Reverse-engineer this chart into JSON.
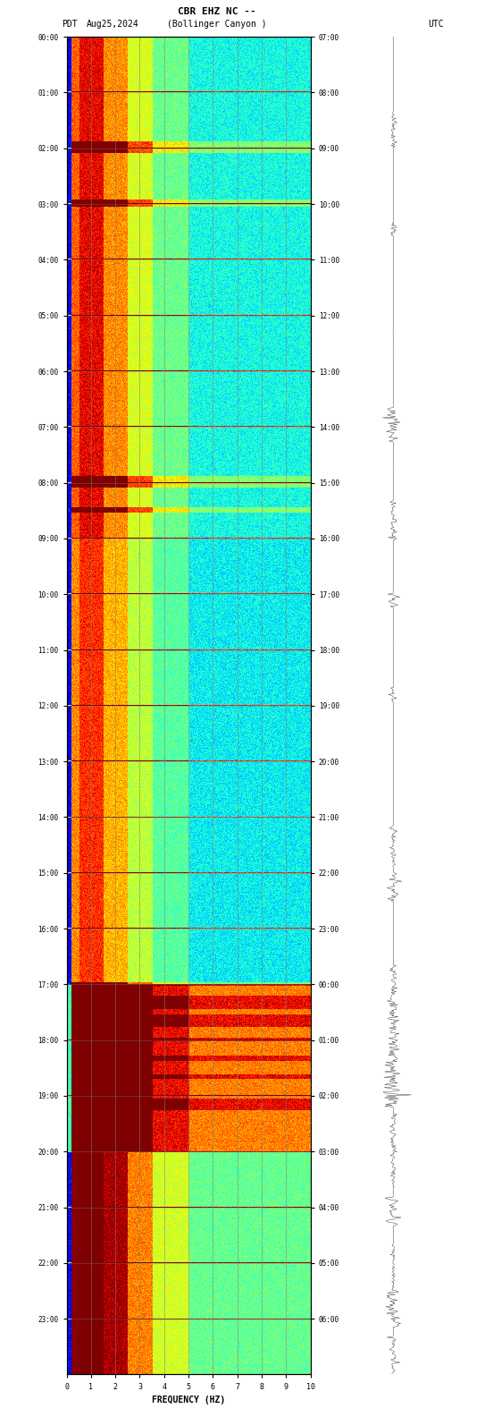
{
  "title_line1": "CBR EHZ NC --",
  "title_line2": "(Bollinger Canyon )",
  "label_left": "PDT",
  "label_date": "Aug25,2024",
  "label_right": "UTC",
  "left_yticks": [
    "00:00",
    "01:00",
    "02:00",
    "03:00",
    "04:00",
    "05:00",
    "06:00",
    "07:00",
    "08:00",
    "09:00",
    "10:00",
    "11:00",
    "12:00",
    "13:00",
    "14:00",
    "15:00",
    "16:00",
    "17:00",
    "18:00",
    "19:00",
    "20:00",
    "21:00",
    "22:00",
    "23:00"
  ],
  "right_yticks": [
    "07:00",
    "08:00",
    "09:00",
    "10:00",
    "11:00",
    "12:00",
    "13:00",
    "14:00",
    "15:00",
    "16:00",
    "17:00",
    "18:00",
    "19:00",
    "20:00",
    "21:00",
    "22:00",
    "23:00",
    "00:00",
    "01:00",
    "02:00",
    "03:00",
    "04:00",
    "05:00",
    "06:00"
  ],
  "xlabel": "FREQUENCY (HZ)",
  "xticks": [
    0,
    1,
    2,
    3,
    4,
    5,
    6,
    7,
    8,
    9,
    10
  ],
  "xmin": 0,
  "xmax": 10,
  "spectrogram_colormap": "jet",
  "background_color": "#ffffff",
  "n_time_bins": 1440,
  "n_freq_bins": 300,
  "seed": 42
}
